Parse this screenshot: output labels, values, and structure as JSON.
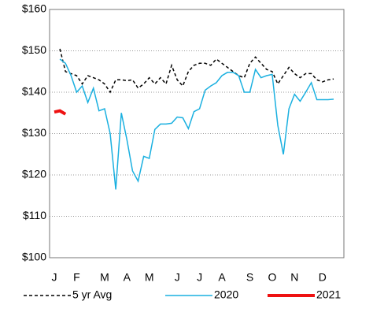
{
  "chart_data": {
    "type": "line",
    "categories": [
      "J",
      null,
      null,
      null,
      "F",
      null,
      null,
      null,
      null,
      "M",
      null,
      null,
      null,
      "A",
      null,
      null,
      null,
      "M",
      null,
      null,
      null,
      null,
      "J",
      null,
      null,
      null,
      "J",
      null,
      null,
      null,
      "A",
      null,
      null,
      null,
      null,
      "S",
      null,
      null,
      null,
      "O",
      null,
      null,
      null,
      "N",
      null,
      null,
      null,
      null,
      "D",
      null,
      null,
      null
    ],
    "series": [
      {
        "name": "5 yr Avg",
        "color": "#000000",
        "dashed": true,
        "values": [
          null,
          150.5,
          145,
          144.5,
          144,
          142,
          144,
          143.5,
          143,
          142,
          140,
          143,
          143,
          142.8,
          143,
          141,
          142,
          143.5,
          142,
          143.5,
          142,
          146.5,
          143,
          141.5,
          145,
          146.5,
          147,
          147,
          146.5,
          148,
          147,
          146,
          145,
          144,
          143.5,
          147,
          148.5,
          147,
          145.5,
          145,
          142,
          144,
          146,
          144.5,
          143.5,
          144.5,
          144.5,
          143,
          142.5,
          143,
          143.2,
          null
        ]
      },
      {
        "name": "2020",
        "color": "#1ab0e0",
        "dashed": false,
        "values": [
          null,
          148,
          147,
          144,
          140,
          141.5,
          137.5,
          141,
          135.5,
          136,
          130,
          116.5,
          135,
          128.5,
          121,
          118.5,
          124.5,
          124,
          131,
          132.3,
          132.3,
          132.5,
          134,
          133.8,
          131.2,
          135.3,
          136,
          140.5,
          141.5,
          142.3,
          144,
          144.8,
          144.8,
          144,
          140,
          140,
          145.5,
          143.5,
          144,
          144.3,
          132,
          125,
          136,
          139.5,
          137.8,
          140,
          142.3,
          138.2,
          138.2,
          138.2,
          138.3,
          null
        ]
      },
      {
        "name": "2021",
        "color": "#ee1111",
        "dashed": false,
        "thick": true,
        "values": [
          135.2,
          135.5,
          134.7,
          null,
          null,
          null,
          null,
          null,
          null,
          null,
          null,
          null,
          null,
          null,
          null,
          null,
          null,
          null,
          null,
          null,
          null,
          null,
          null,
          null,
          null,
          null,
          null,
          null,
          null,
          null,
          null,
          null,
          null,
          null,
          null,
          null,
          null,
          null,
          null,
          null,
          null,
          null,
          null,
          null,
          null,
          null,
          null,
          null,
          null,
          null,
          null,
          null
        ]
      }
    ],
    "ylim": [
      100,
      160
    ],
    "yticks": [
      {
        "value": 100,
        "label": "$100"
      },
      {
        "value": 110,
        "label": "$110"
      },
      {
        "value": 120,
        "label": "$120"
      },
      {
        "value": 130,
        "label": "$130"
      },
      {
        "value": 140,
        "label": "$140"
      },
      {
        "value": 150,
        "label": "$150"
      },
      {
        "value": 160,
        "label": "$160"
      }
    ],
    "grid": true,
    "legend": "bottom"
  }
}
